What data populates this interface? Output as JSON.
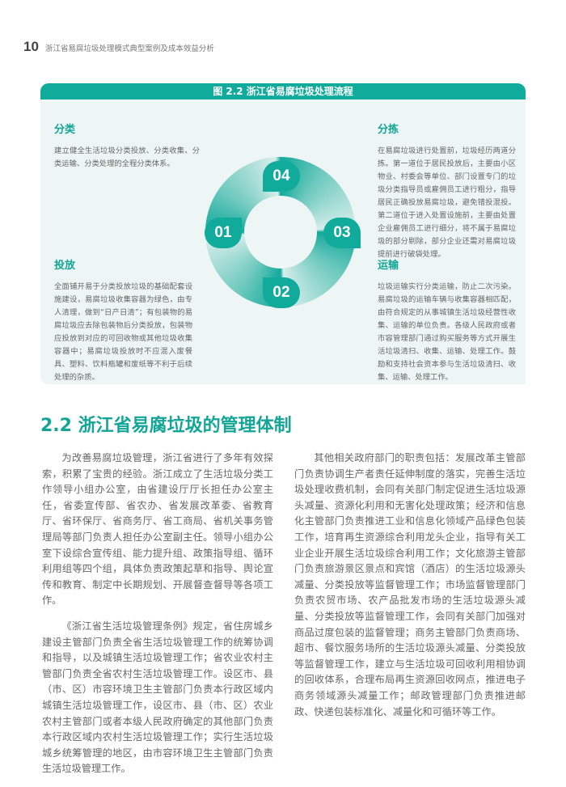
{
  "header": {
    "page_number": "10",
    "running_title": "浙江省易腐垃圾处理模式典型案例及成本效益分析"
  },
  "figure": {
    "title": "图 2.2 浙江省易腐垃圾处理流程",
    "accent_color": "#11ab9c",
    "steps": [
      {
        "number": "01",
        "title": "分类",
        "text": "建立健全生活垃圾分类投放、分类收集、分类运输、分类处理的全程分类体系。"
      },
      {
        "number": "02",
        "title": "投放",
        "text": "全面铺开易于分类投放垃圾的基础配套设施建设，易腐垃圾收集容器为绿色，由专人清理，做到“日产日清”；有包装物的易腐垃圾应去除包装物后分类投放，包装物应投放到对应的可回收物或其他垃圾收集容器中；易腐垃圾投放时不应混入废餐具、塑料、饮料瓶罐和废纸等不利于后续处理的杂质。"
      },
      {
        "number": "03",
        "title": "运输",
        "text": "垃圾运输实行分类运输，防止二次污染。易腐垃圾的运输车辆与收集容器相匹配，由符合规定的从事城镇生活垃圾经营性收集、运输的单位负责。各级人民政府或者市容管理部门通过购买服务等方式开展生活垃圾清扫、收集、运输、处理工作。鼓励和支持社会资本参与生活垃圾清扫、收集、运输、处理工作。"
      },
      {
        "number": "04",
        "title": "分拣",
        "text": "在易腐垃圾进行处置前，垃圾经历两道分拣。第一道位于居民投放后，主要由小区物业、村委会等单位、部门设置专门的垃圾分类指导员或雇佣员工进行粗分，指导居民正确投放易腐垃圾，避免错投混投。第二道位于进入处置设施前，主要由处置企业雇佣员工进行细分，将不属于易腐垃圾的部分剔除，部分企业还需对易腐垃圾提前进行破袋处理。"
      }
    ]
  },
  "section": {
    "title": "2.2 浙江省易腐垃圾的管理体制",
    "paragraphs": [
      "为改善易腐垃圾管理，浙江省进行了多年有效探索，积累了宝贵的经验。浙江成立了生活垃圾分类工作领导小组办公室，由省建设厅厅长担任办公室主任，省委宣传部、省农办、省发展改革委、省教育厅、省环保厅、省商务厅、省工商局、省机关事务管理局等部门负责人担任办公室副主任。领导小组办公室下设综合宣传组、能力提升组、政策指导组、循环利用组等四个组，具体负责政策起草和指导、舆论宣传和教育、制定中长期规划、开展督查督导等各项工作。",
      "《浙江省生活垃圾管理条例》规定，省住房城乡建设主管部门负责全省生活垃圾管理工作的统筹协调和指导，以及城镇生活垃圾管理工作；省农业农村主管部门负责全省农村生活垃圾管理工作。设区市、县（市、区）市容环境卫生主管部门负责本行政区域内城镇生活垃圾管理工作，设区市、县（市、区）农业农村主管部门或者本级人民政府确定的其他部门负责本行政区域内农村生活垃圾管理工作；实行生活垃圾城乡统筹管理的地区，由市容环境卫生主管部门负责生活垃圾管理工作。",
      "其他相关政府部门的职责包括：发展改革主管部门负责协调生产者责任延伸制度的落实，完善生活垃圾处理收费机制，会同有关部门制定促进生活垃圾源头减量、资源化利用和无害化处理政策；经济和信息化主管部门负责推进工业和信息化领域产品绿色包装工作，培育再生资源综合利用龙头企业，指导有关工业企业开展生活垃圾综合利用工作；文化旅游主管部门负责旅游景区景点和宾馆（酒店）的生活垃圾源头减量、分类投放等监督管理工作；市场监督管理部门负责农贸市场、农产品批发市场的生活垃圾源头减量、分类投放等监督管理工作，会同有关部门加强对商品过度包装的监督管理；商务主管部门负责商场、超市、餐饮服务场所的生活垃圾源头减量、分类投放等监督管理工作，建立与生活垃圾可回收利用相协调的回收体系，合理布局再生资源回收网点，推进电子商务领域源头减量工作；邮政管理部门负责推进邮政、快递包装标准化、减量化和可循环等工作。"
    ]
  }
}
